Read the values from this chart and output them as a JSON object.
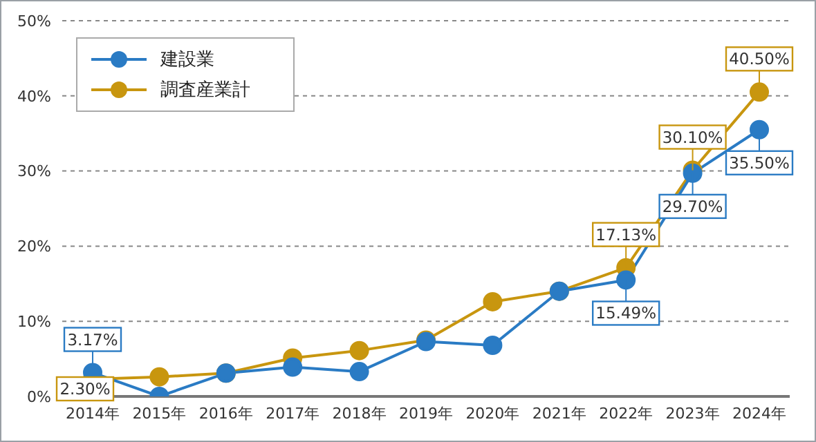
{
  "chart_data": {
    "type": "line",
    "categories": [
      "2014年",
      "2015年",
      "2016年",
      "2017年",
      "2018年",
      "2019年",
      "2020年",
      "2021年",
      "2022年",
      "2023年",
      "2024年"
    ],
    "series": [
      {
        "name": "建設業",
        "color": "#2a7bc4",
        "values": [
          3.17,
          0,
          3.1,
          3.9,
          3.3,
          7.3,
          6.8,
          14.0,
          15.49,
          29.7,
          35.5
        ],
        "value_labels": [
          "3.17%",
          null,
          null,
          null,
          null,
          null,
          null,
          null,
          "15.49%",
          "29.70%",
          "35.50%"
        ]
      },
      {
        "name": "調査産業計",
        "color": "#c8960f",
        "values": [
          2.3,
          2.6,
          3.1,
          5.1,
          6.1,
          7.5,
          12.6,
          14.0,
          17.13,
          30.1,
          40.5
        ],
        "value_labels": [
          "2.30%",
          null,
          null,
          null,
          null,
          null,
          null,
          null,
          "17.13%",
          "30.10%",
          "40.50%"
        ]
      }
    ],
    "ylim": [
      0,
      50
    ],
    "yticks": [
      {
        "value": 0,
        "label": "0%"
      },
      {
        "value": 10,
        "label": "10%"
      },
      {
        "value": 20,
        "label": "20%"
      },
      {
        "value": 30,
        "label": "30%"
      },
      {
        "value": 40,
        "label": "40%"
      },
      {
        "value": 50,
        "label": "50%"
      }
    ],
    "grid": "y",
    "legend": "top left",
    "marker": "circle",
    "line_style": "solid"
  }
}
